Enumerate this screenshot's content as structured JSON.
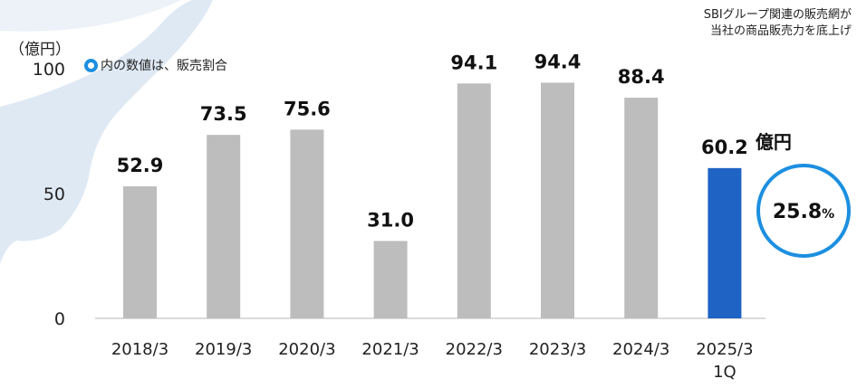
{
  "header": {
    "note_line1": "SBIグループ関連の販売網が",
    "note_line2": "当社の商品販売力を底上げ",
    "unit_label": "（億円）"
  },
  "legend": {
    "marker_color": "#1c8fe0",
    "text": "内の数値は、販売割合"
  },
  "callout": {
    "unit_text": "億円",
    "percent_value": "25.8",
    "percent_unit": "%",
    "circle_color": "#1c8fe0"
  },
  "colors": {
    "bar_default": "#bdbdbd",
    "bar_highlight": "#1f63c4",
    "map_fill": "#dfe9f4",
    "axis": "#cfcfcf"
  },
  "chart_data": {
    "type": "bar",
    "title": "",
    "xlabel": "",
    "ylabel": "（億円）",
    "ylim": [
      0,
      100
    ],
    "yticks": [
      0,
      50,
      100
    ],
    "grid": false,
    "categories": [
      "2018/3",
      "2019/3",
      "2020/3",
      "2021/3",
      "2022/3",
      "2023/3",
      "2024/3",
      "2025/3\n1Q"
    ],
    "category_lines": [
      [
        "2018/3"
      ],
      [
        "2019/3"
      ],
      [
        "2020/3"
      ],
      [
        "2021/3"
      ],
      [
        "2022/3"
      ],
      [
        "2023/3"
      ],
      [
        "2024/3"
      ],
      [
        "2025/3",
        "1Q"
      ]
    ],
    "values": [
      52.9,
      73.5,
      75.6,
      31.0,
      94.1,
      94.4,
      88.4,
      60.2
    ],
    "labels": [
      "52.9",
      "73.5",
      "75.6",
      "31.0",
      "94.1",
      "94.4",
      "88.4",
      "60.2"
    ],
    "highlight_index": 7,
    "annotations": [
      {
        "category": "2025/3\n1Q",
        "text": "25.8%",
        "meaning": "販売割合"
      }
    ]
  }
}
